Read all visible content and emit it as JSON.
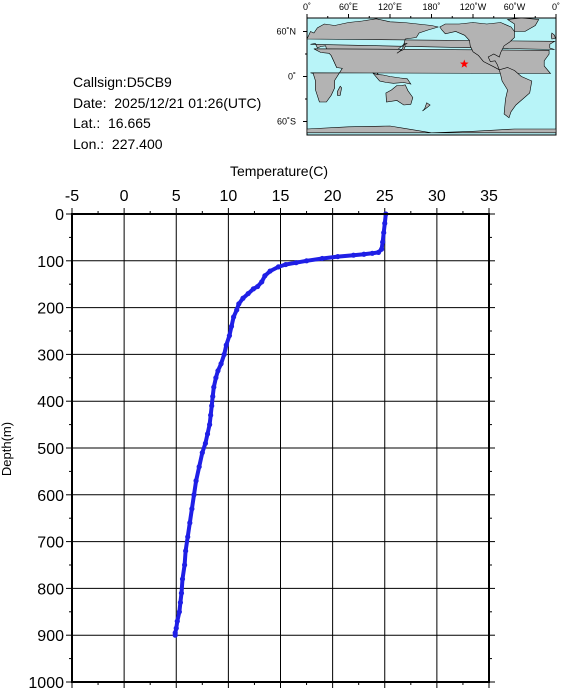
{
  "info": {
    "callsign": "Callsign:D5CB9",
    "date": "Date:  2025/12/21 01:26(UTC)",
    "lat": "Lat.:  16.665",
    "lon": "Lon.:  227.400"
  },
  "map": {
    "lon_labels": [
      "0˚",
      "60˚E",
      "120˚E",
      "180˚",
      "120˚W",
      "60˚W",
      "0˚"
    ],
    "lat_labels": [
      "60˚N",
      "0˚",
      "60˚S"
    ],
    "ocean_color": "#b8f4f8",
    "land_color": "#b3b3b3",
    "marker": {
      "lat": 16.665,
      "lon": 227.4,
      "color": "#ff0000",
      "symbol": "star"
    }
  },
  "chart_data": {
    "type": "line",
    "xlabel": "Temperature(C)",
    "ylabel": "Depth(m)",
    "xlim": [
      -5,
      35
    ],
    "ylim": [
      1000,
      0
    ],
    "x_ticks": [
      "-5",
      "0",
      "5",
      "10",
      "15",
      "20",
      "25",
      "30",
      "35"
    ],
    "y_ticks": [
      "0",
      "100",
      "200",
      "300",
      "400",
      "500",
      "600",
      "700",
      "800",
      "900",
      "1000"
    ],
    "grid": true,
    "series_color": "#1f1fe6",
    "series": [
      {
        "x": [
          25.1,
          25.0,
          24.9,
          24.8,
          24.7,
          24.4,
          23.8,
          23.0,
          22.0,
          20.5,
          19.0,
          17.5,
          16.5,
          15.5,
          14.8,
          14.0,
          13.5,
          13.2,
          12.8,
          12.4,
          11.9,
          11.4,
          11.0,
          10.8,
          10.5,
          10.3,
          10.1,
          9.8,
          9.6,
          9.3,
          9.0,
          8.8,
          8.6,
          8.5,
          8.4,
          8.3,
          8.2,
          8.0,
          7.8,
          7.5,
          7.2,
          6.9,
          6.7,
          6.5,
          6.3,
          6.1,
          5.9,
          5.8,
          5.6,
          5.5,
          5.4,
          5.3,
          5.1,
          5.0,
          4.9,
          4.9
        ],
        "y": [
          0,
          20,
          40,
          60,
          75,
          82,
          84,
          86,
          88,
          91,
          95,
          100,
          104,
          108,
          113,
          122,
          132,
          145,
          155,
          160,
          170,
          180,
          192,
          205,
          220,
          240,
          260,
          280,
          300,
          320,
          335,
          350,
          370,
          390,
          410,
          430,
          450,
          470,
          490,
          510,
          540,
          570,
          600,
          630,
          660,
          690,
          720,
          750,
          780,
          810,
          830,
          850,
          870,
          885,
          895,
          900
        ]
      }
    ]
  }
}
